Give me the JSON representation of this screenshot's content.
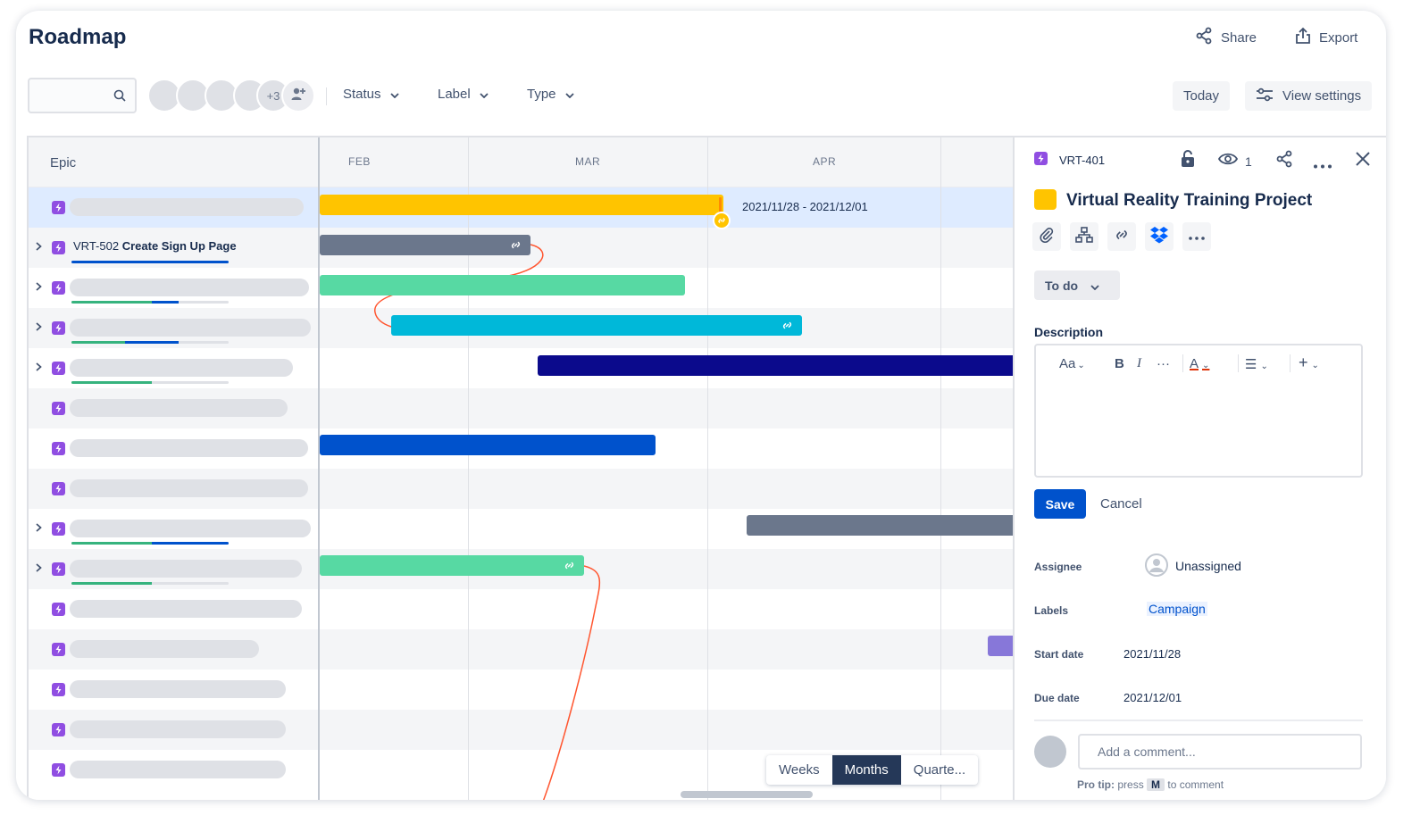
{
  "header": {
    "title": "Roadmap",
    "share_label": "Share",
    "export_label": "Export"
  },
  "toolbar": {
    "search_placeholder": "",
    "more_avatars": "+3",
    "filters": [
      "Status",
      "Label",
      "Type"
    ],
    "today_label": "Today",
    "view_settings_label": "View settings"
  },
  "epic_column": {
    "header": "Epic",
    "rows": [
      {
        "expandable": false,
        "selected": true,
        "text": ""
      },
      {
        "expandable": true,
        "selected": false,
        "key": "VRT-502",
        "title": "Create Sign Up Page"
      },
      {
        "expandable": true,
        "selected": false
      },
      {
        "expandable": true,
        "selected": false
      },
      {
        "expandable": true,
        "selected": false
      },
      {
        "expandable": false,
        "selected": false
      },
      {
        "expandable": false,
        "selected": false
      },
      {
        "expandable": false,
        "selected": false
      },
      {
        "expandable": true,
        "selected": false
      },
      {
        "expandable": true,
        "selected": false
      },
      {
        "expandable": false,
        "selected": false
      },
      {
        "expandable": false,
        "selected": false
      },
      {
        "expandable": false,
        "selected": false
      },
      {
        "expandable": false,
        "selected": false
      },
      {
        "expandable": false,
        "selected": false
      }
    ]
  },
  "timeline": {
    "months": [
      "FEB",
      "MAR",
      "APR"
    ],
    "selected_date_range": "2021/11/28 - 2021/12/01",
    "bar_colors": {
      "yellow": "#FFC400",
      "gray": "#6B778C",
      "green": "#57D9A3",
      "cyan": "#00B8D9",
      "navy": "#0B0A8C",
      "blue": "#0052CC",
      "purple": "#8777D9",
      "dependency_line": "#FF5630"
    },
    "zoom_options": [
      "Weeks",
      "Months",
      "Quarte..."
    ],
    "zoom_selected": "Months"
  },
  "panel": {
    "issue_key": "VRT-401",
    "watchers": "1",
    "title": "Virtual Reality Training Project",
    "color": "#FFC400",
    "status": "To do",
    "description_label": "Description",
    "editor": {
      "text_style": "Aa",
      "bold": "B",
      "italic": "I",
      "more": "···",
      "text_color": "A",
      "list": "☰",
      "insert": "+"
    },
    "save_label": "Save",
    "cancel_label": "Cancel",
    "fields": {
      "assignee_label": "Assignee",
      "assignee_value": "Unassigned",
      "labels_label": "Labels",
      "labels_value": "Campaign",
      "start_label": "Start date",
      "start_value": "2021/11/28",
      "due_label": "Due date",
      "due_value": "2021/12/01"
    },
    "comment_placeholder": "Add a comment...",
    "tip_prefix": "Pro tip:",
    "tip_press": "press",
    "tip_key": "M",
    "tip_suffix": "to comment"
  }
}
